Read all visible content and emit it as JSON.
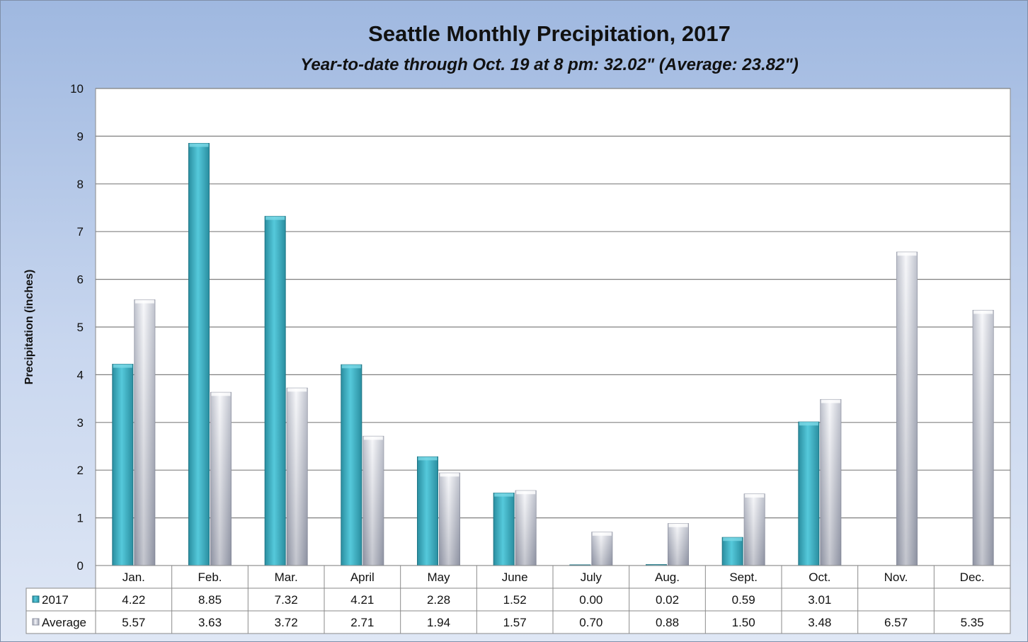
{
  "chart_data": {
    "type": "bar",
    "title": "Seattle Monthly Precipitation, 2017",
    "subtitle": "Year-to-date through Oct. 19 at 8 pm: 32.02\" (Average: 23.82\")",
    "ylabel": "Precipitation (inches)",
    "xlabel": "",
    "ylim": [
      0,
      10
    ],
    "yticks": [
      "0",
      "1",
      "2",
      "3",
      "4",
      "5",
      "6",
      "7",
      "8",
      "9",
      "10"
    ],
    "grid": true,
    "legend": "data-table",
    "categories": [
      "Jan.",
      "Feb.",
      "Mar.",
      "April",
      "May",
      "June",
      "July",
      "Aug.",
      "Sept.",
      "Oct.",
      "Nov.",
      "Dec."
    ],
    "series": [
      {
        "name": "2017",
        "color": "#3fb5c8",
        "values": [
          4.22,
          8.85,
          7.32,
          4.21,
          2.28,
          1.52,
          0.0,
          0.02,
          0.59,
          3.01,
          null,
          null
        ],
        "labels": [
          "4.22",
          "8.85",
          "7.32",
          "4.21",
          "2.28",
          "1.52",
          "0.00",
          "0.02",
          "0.59",
          "3.01",
          "",
          ""
        ]
      },
      {
        "name": "Average",
        "color": "#c8ccd8",
        "values": [
          5.57,
          3.63,
          3.72,
          2.71,
          1.94,
          1.57,
          0.7,
          0.88,
          1.5,
          3.48,
          6.57,
          5.35
        ],
        "labels": [
          "5.57",
          "3.63",
          "3.72",
          "2.71",
          "1.94",
          "1.57",
          "0.70",
          "0.88",
          "1.50",
          "3.48",
          "6.57",
          "5.35"
        ]
      }
    ]
  }
}
